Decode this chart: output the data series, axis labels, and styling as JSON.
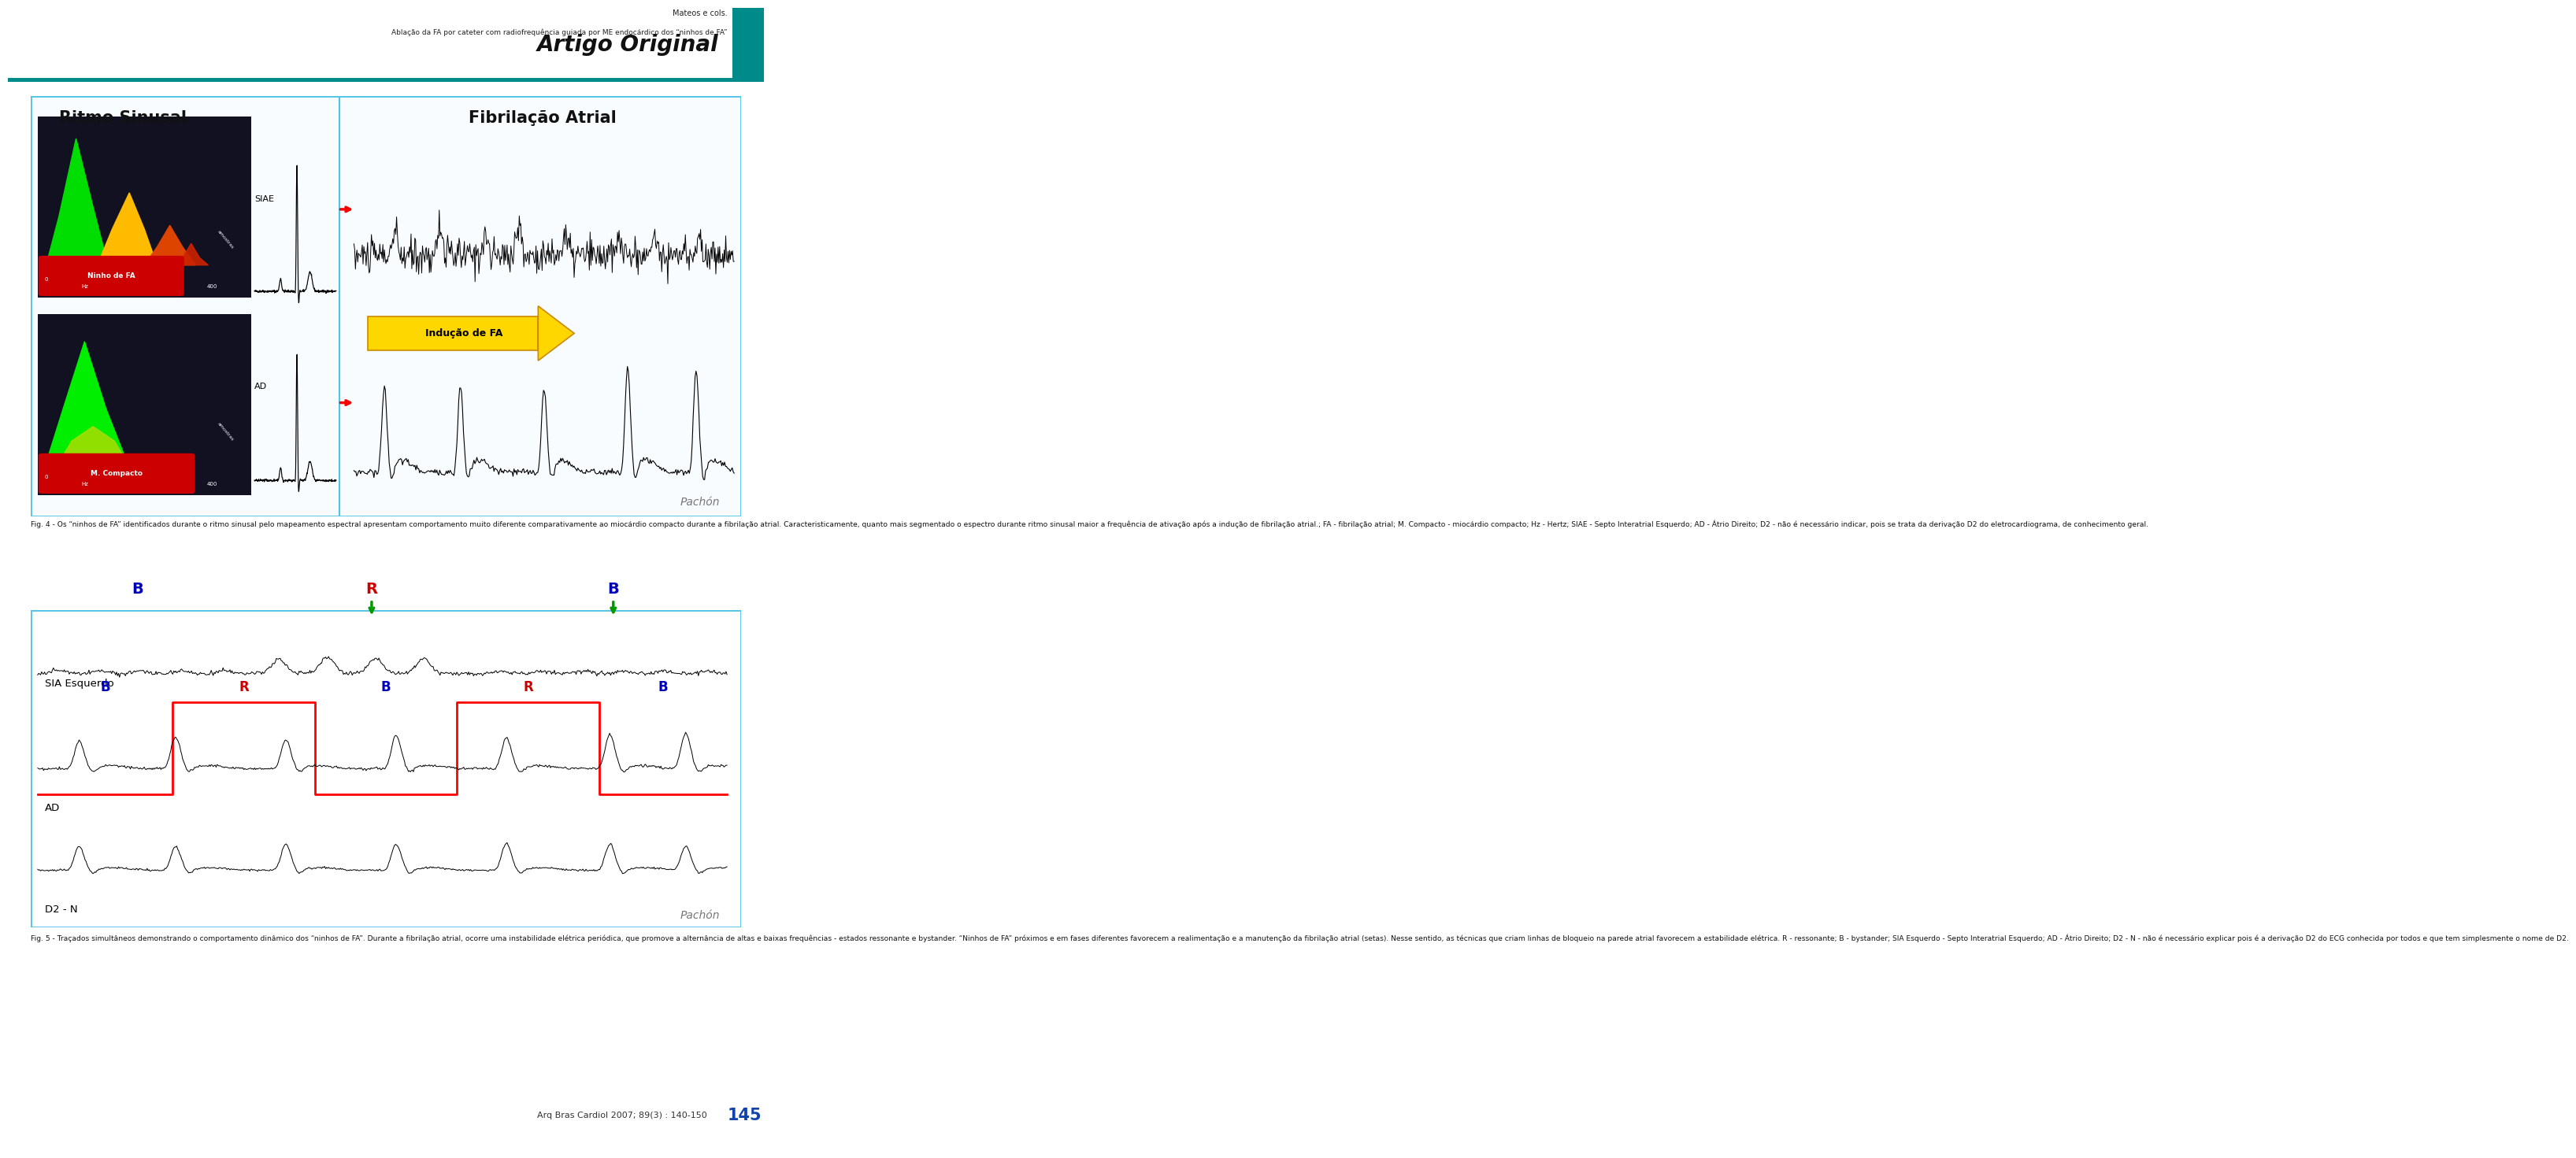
{
  "header_author": "Mateos e cols.",
  "header_title": "Ablação da FA por cateter com radiofrequência guiada por ME endocárdico dos “ninhos de FA”",
  "section_label": "Artigo Original",
  "teal_bar_color": "#008B8B",
  "fig4_caption": "Fig. 4 - Os “ninhos de FA” identificados durante o ritmo sinusal pelo mapeamento espectral apresentam comportamento muito diferente comparativamente ao miocárdio compacto durante a fibrilação atrial. Caracteristicamente, quanto mais segmentado o espectro durante ritmo sinusal maior a frequência de ativação após a indução de fibrilação atrial.; FA - fibrilação atrial; M. Compacto - miocárdio compacto; Hz - Hertz; SIAE - Septo Interatrial Esquerdo; AD - Átrio Direito; D2 - não é necessário indicar, pois se trata da derivação D2 do eletrocardiograma, de conhecimento geral.",
  "fig5_caption": "Fig. 5 - Traçados simultâneos demonstrando o comportamento dinâmico dos “ninhos de FA”. Durante a fibrilação atrial, ocorre uma instabilidade elétrica periódica, que promove a alternância de altas e baixas frequências - estados ressonante e bystander. “Ninhos de FA” próximos e em fases diferentes favorecem a realimentação e a manutenção da fibrilação atrial (setas). Nesse sentido, as técnicas que criam linhas de bloqueio na parede atrial favorecem a estabilidade elétrica. R - ressonante; B - bystander; SIA Esquerdo - Septo Interatrial Esquerdo; AD - Átrio Direito; D2 - N - não é necessário explicar pois é a derivação D2 do ECG conhecida por todos e que tem simplesmente o nome de D2.",
  "footer_text": "Arq Bras Cardiol 2007; 89(3) : 140-150",
  "footer_page": "145",
  "page_bg": "#ffffff",
  "blue_border": "#4FC3E8",
  "dark_bg": "#1a1a2e"
}
